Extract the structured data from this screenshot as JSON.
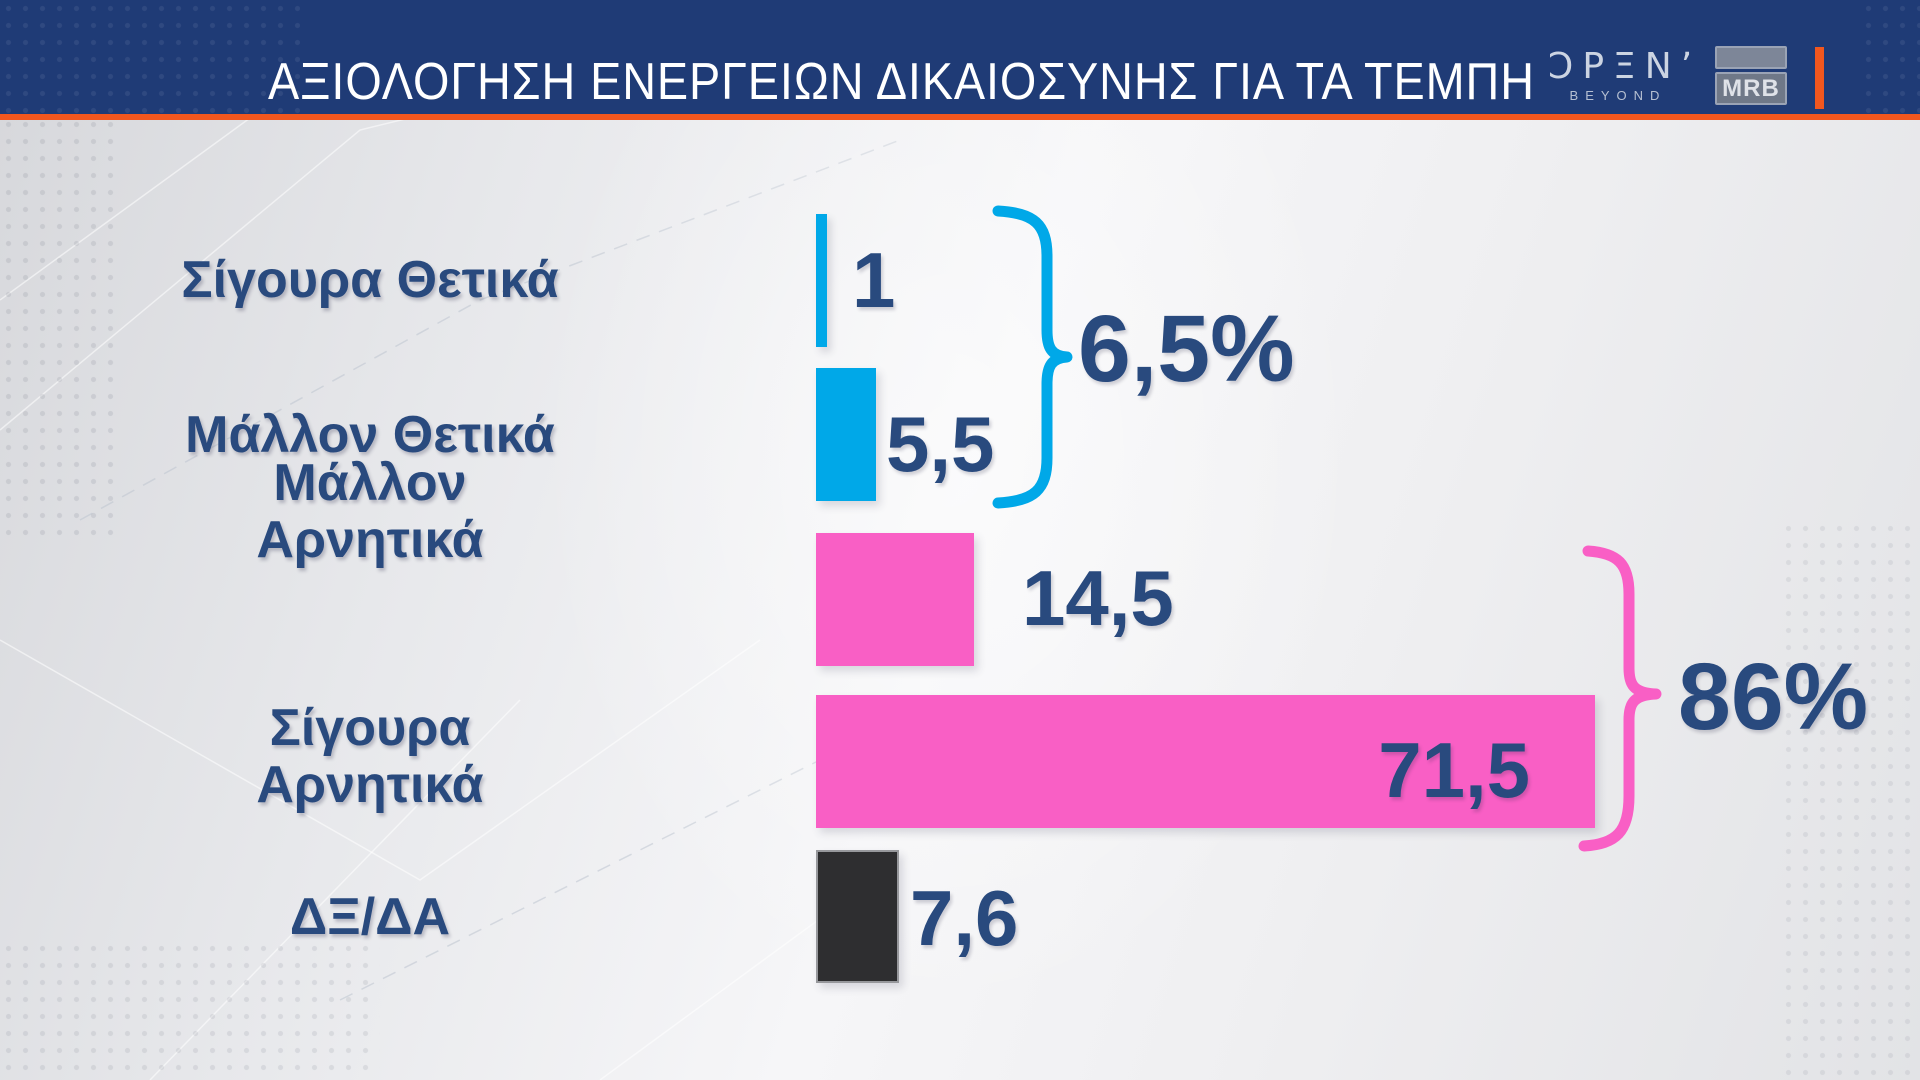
{
  "header": {
    "title": "ΑΞΙΟΛΟΓΗΣΗ ΕΝΕΡΓΕΙΩΝ ΔΙΚΑΙΟΣΥΝΗΣ ΓΙΑ ΤΑ ΤΕΜΠΗ",
    "open_logo": {
      "name": "OPEN",
      "display": "ƆPΞN’",
      "tagline": "BEYOND"
    },
    "mrb_logo": {
      "text": "MRB"
    }
  },
  "colors": {
    "cyan": "#00A8E8",
    "pink": "#F95FC5",
    "dark": "#2E2E30",
    "navy": "#294A7E",
    "header_blue": "#1F3B76",
    "orange": "#F2571E"
  },
  "chart_data": {
    "type": "bar",
    "orientation": "horizontal",
    "title": "ΑΞΙΟΛΟΓΗΣΗ ΕΝΕΡΓΕΙΩΝ ΔΙΚΑΙΟΣΥΝΗΣ ΓΙΑ ΤΑ ΤΕΜΠΗ",
    "xlim": [
      0,
      100
    ],
    "grid": false,
    "legend": false,
    "decimal_separator": ",",
    "categories": [
      "Σίγουρα Θετικά",
      "Μάλλον Θετικά",
      "Μάλλον Αρνητικά",
      "Σίγουρα Αρνητικά",
      "ΔΞ/ΔΑ"
    ],
    "values": [
      1,
      5.5,
      14.5,
      71.5,
      7.6
    ],
    "value_labels": [
      "1",
      "5,5",
      "14,5",
      "71,5",
      "7,6"
    ],
    "category_line_breaks": [
      [
        "Σίγουρα Θετικά"
      ],
      [
        "Μάλλον Θετικά"
      ],
      [
        "Μάλλον",
        "Αρνητικά"
      ],
      [
        "Σίγουρα",
        "Αρνητικά"
      ],
      [
        "ΔΞ/ΔΑ"
      ]
    ],
    "bar_color_keys": [
      "cyan",
      "cyan",
      "pink",
      "pink",
      "dark"
    ],
    "brackets": [
      {
        "label": "6,5%",
        "color_key": "cyan",
        "sum_of": [
          "Σίγουρα Θετικά",
          "Μάλλον Θετικά"
        ],
        "total": 6.5
      },
      {
        "label": "86%",
        "color_key": "pink",
        "sum_of": [
          "Μάλλον Αρνητικά",
          "Σίγουρα Αρνητικά"
        ],
        "total": 86
      }
    ]
  }
}
